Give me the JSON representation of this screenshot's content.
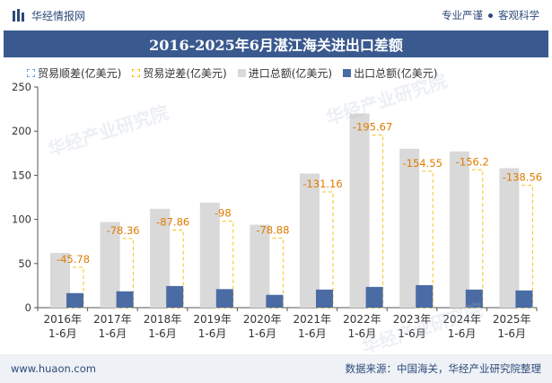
{
  "header": {
    "brand": "华经情报网",
    "tagline_left": "专业严谨",
    "tagline_right": "客观科学"
  },
  "footer": {
    "website": "www.huaon.com",
    "source": "数据来源：中国海关，华经产业研究院整理"
  },
  "colors": {
    "title_bg": "#3a5a8f",
    "imports": "#d9d9d9",
    "exports": "#4b6ba5",
    "deficit_outline": "#f5c518",
    "surplus_outline": "#7aa7d6"
  },
  "chart_data": {
    "type": "bar",
    "title": "2016-2025年6月湛江海关进出口差额",
    "categories": [
      [
        "2016年",
        "1-6月"
      ],
      [
        "2017年",
        "1-6月"
      ],
      [
        "2018年",
        "1-6月"
      ],
      [
        "2019年",
        "1-6月"
      ],
      [
        "2020年",
        "1-6月"
      ],
      [
        "2021年",
        "1-6月"
      ],
      [
        "2022年",
        "1-6月"
      ],
      [
        "2023年",
        "1-6月"
      ],
      [
        "2024年",
        "1-6月"
      ],
      [
        "2025年",
        "1-6月"
      ]
    ],
    "series": [
      {
        "name": "贸易顺差(亿美元)",
        "values": [
          null,
          null,
          null,
          null,
          null,
          null,
          null,
          null,
          null,
          null
        ]
      },
      {
        "name": "贸易逆差(亿美元)",
        "values": [
          -45.78,
          -78.36,
          -87.86,
          -98,
          -78.88,
          -131.16,
          -195.67,
          -154.55,
          -156.2,
          -138.56
        ]
      },
      {
        "name": "进口总额(亿美元)",
        "values": [
          62,
          97,
          112,
          119,
          94,
          152,
          220,
          180,
          177,
          158
        ]
      },
      {
        "name": "出口总额(亿美元)",
        "values": [
          16.5,
          18.5,
          24.5,
          21,
          14.5,
          20.5,
          23.5,
          25.5,
          20.5,
          19.5
        ]
      }
    ],
    "data_labels": [
      "-45.78",
      "-78.36",
      "-87.86",
      "-98",
      "-78.88",
      "-131.16",
      "-195.67",
      "-154.55",
      "-156.2",
      "-138.56"
    ],
    "ylim": [
      0,
      250
    ],
    "yticks": [
      0,
      50,
      100,
      150,
      200,
      250
    ],
    "legend_position": "top-left",
    "grid": false
  }
}
